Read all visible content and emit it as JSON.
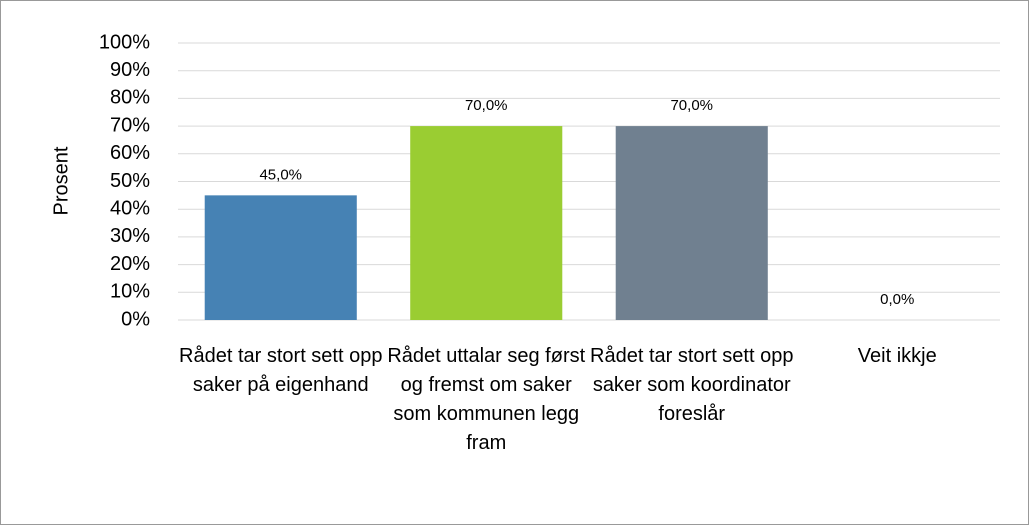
{
  "chart_data": {
    "type": "bar",
    "y_label": "Prosent",
    "categories": [
      "Rådet tar stort sett opp saker på eigenhand",
      "Rådet uttalar seg først og fremst om saker som kommunen legg fram",
      "Rådet tar stort sett opp saker som koordinator foreslår",
      "Veit ikkje"
    ],
    "values": [
      45,
      70,
      70,
      0
    ],
    "value_labels": [
      "45,0%",
      "70,0%",
      "70,0%",
      "0,0%"
    ],
    "colors": [
      "#4682b4",
      "#9acd32",
      "#708090",
      "#4682b4"
    ],
    "ylim": [
      0,
      100
    ],
    "yticks": [
      {
        "value": 0,
        "label": "0%"
      },
      {
        "value": 10,
        "label": "10%"
      },
      {
        "value": 20,
        "label": "20%"
      },
      {
        "value": 30,
        "label": "30%"
      },
      {
        "value": 40,
        "label": "40%"
      },
      {
        "value": 50,
        "label": "50%"
      },
      {
        "value": 60,
        "label": "60%"
      },
      {
        "value": 70,
        "label": "70%"
      },
      {
        "value": 80,
        "label": "80%"
      },
      {
        "value": 90,
        "label": "90%"
      },
      {
        "value": 100,
        "label": "100%"
      }
    ],
    "grid": true
  }
}
